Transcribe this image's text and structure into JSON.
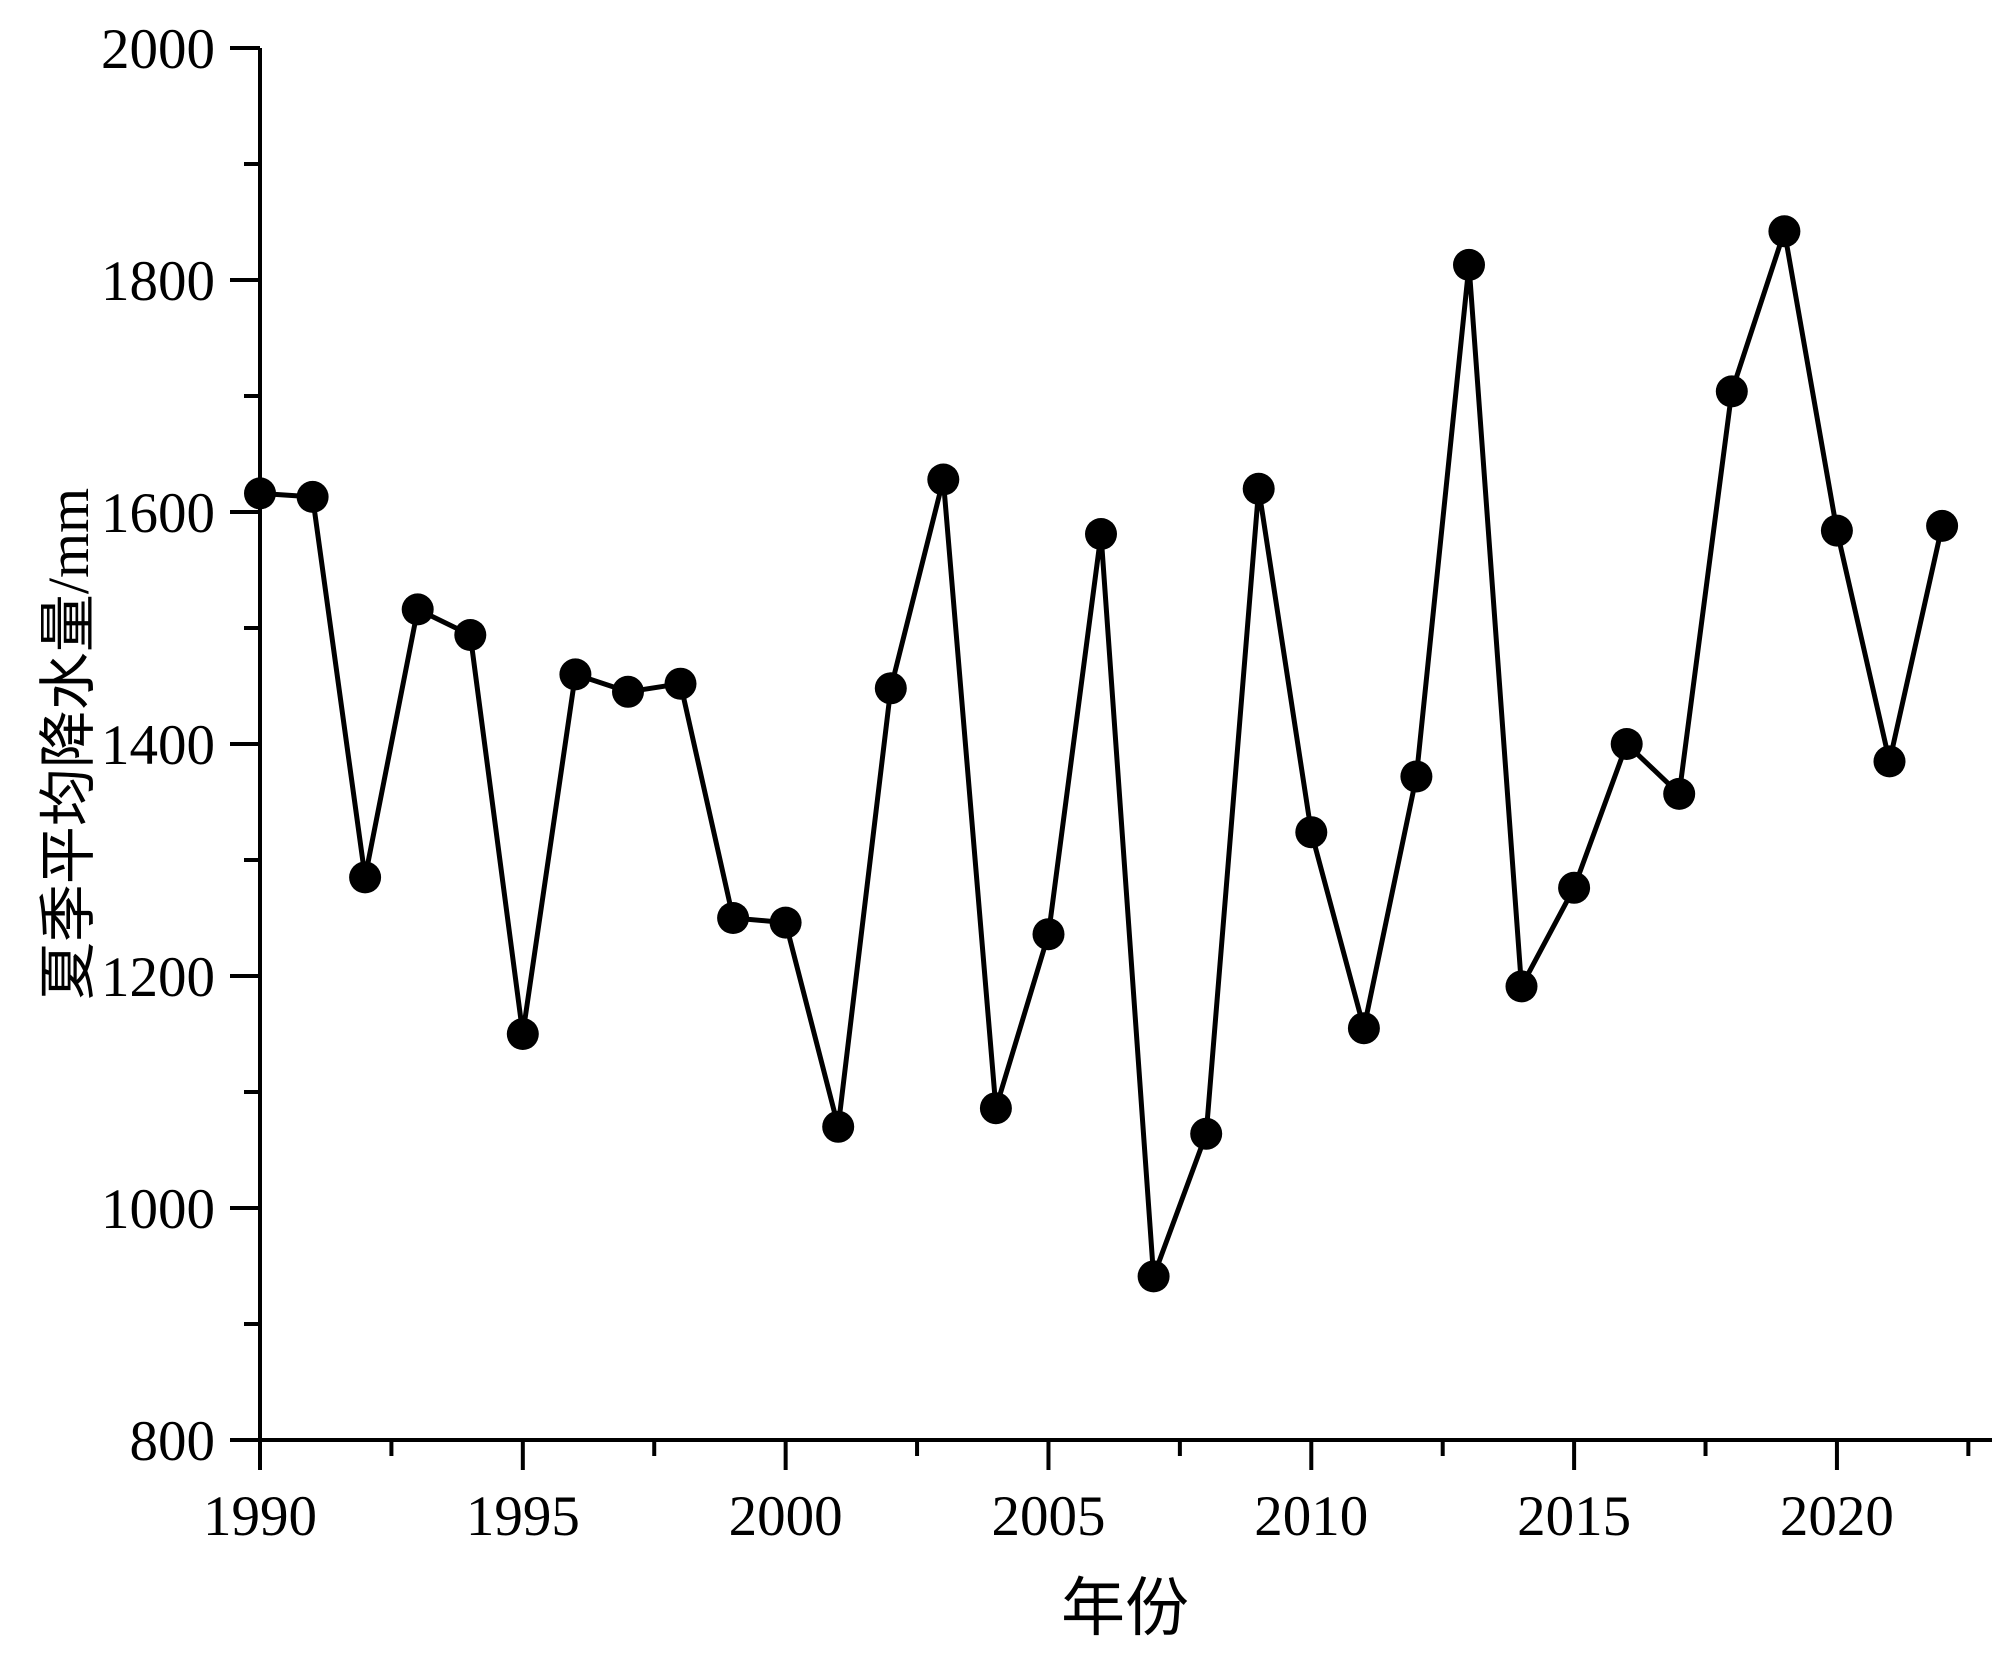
{
  "chart_data": {
    "type": "line",
    "title": "",
    "xlabel": "年份",
    "ylabel": "夏季平均降水量/mm",
    "series": [
      {
        "name": "夏季平均降水量",
        "x": [
          1990,
          1991,
          1992,
          1993,
          1994,
          1995,
          1996,
          1997,
          1998,
          1999,
          2000,
          2001,
          2002,
          2003,
          2004,
          2005,
          2006,
          2007,
          2008,
          2009,
          2010,
          2011,
          2012,
          2013,
          2014,
          2015,
          2016,
          2017,
          2018,
          2019,
          2020,
          2021,
          2022
        ],
        "values": [
          1616,
          1613,
          1285,
          1516,
          1494,
          1150,
          1460,
          1445,
          1452,
          1250,
          1246,
          1070,
          1448,
          1628,
          1086,
          1236,
          1581,
          941,
          1064,
          1620,
          1324,
          1155,
          1372,
          1813,
          1191,
          1276,
          1400,
          1357,
          1704,
          1842,
          1584,
          1385,
          1588
        ]
      }
    ],
    "xlim": [
      1990,
      2022.95
    ],
    "ylim": [
      800,
      2000
    ],
    "x_major_ticks": [
      1990,
      1995,
      2000,
      2005,
      2010,
      2015,
      2020
    ],
    "x_minor_ticks": [
      1992.5,
      1997.5,
      2002.5,
      2007.5,
      2012.5,
      2017.5,
      2022.5
    ],
    "y_major_ticks": [
      800,
      1000,
      1200,
      1400,
      1600,
      1800,
      2000
    ],
    "y_minor_ticks": [
      900,
      1100,
      1300,
      1500,
      1700,
      1900
    ],
    "grid": false,
    "legend_position": "none",
    "marker": "circle",
    "line_color": "#000000",
    "marker_color": "#000000",
    "background_color": "#ffffff"
  }
}
